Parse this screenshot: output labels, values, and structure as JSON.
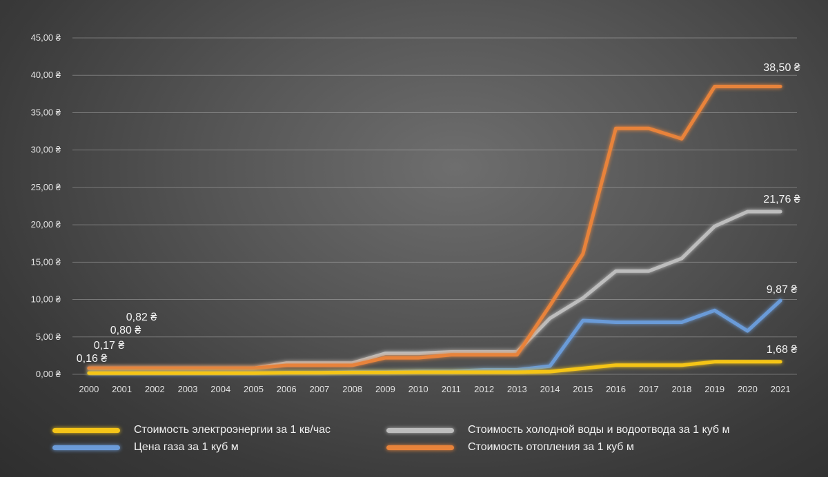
{
  "chart_data": {
    "type": "line",
    "title": "",
    "xlabel": "",
    "ylabel": "",
    "x": [
      "2000",
      "2001",
      "2002",
      "2003",
      "2004",
      "2005",
      "2006",
      "2007",
      "2008",
      "2009",
      "2010",
      "2011",
      "2012",
      "2013",
      "2014",
      "2015",
      "2016",
      "2017",
      "2018",
      "2019",
      "2020",
      "2021"
    ],
    "ylim": [
      0,
      45
    ],
    "y_ticks": [
      "0,00 ₴",
      "5,00 ₴",
      "10,00 ₴",
      "15,00 ₴",
      "20,00 ₴",
      "25,00 ₴",
      "30,00 ₴",
      "35,00 ₴",
      "40,00 ₴",
      "45,00 ₴"
    ],
    "grid": true,
    "legend_position": "bottom",
    "series": [
      {
        "name": "Стоимость электроэнергии за 1 кв/час",
        "color": "#f5c518",
        "values": [
          0.16,
          0.16,
          0.16,
          0.16,
          0.16,
          0.16,
          0.2,
          0.2,
          0.24,
          0.24,
          0.28,
          0.28,
          0.28,
          0.28,
          0.36,
          0.79,
          1.22,
          1.22,
          1.22,
          1.68,
          1.68,
          1.68
        ]
      },
      {
        "name": "Стоимость холодной воды и водоотвода за 1 куб м",
        "color": "#bdbdbd",
        "values": [
          0.8,
          0.8,
          0.8,
          0.8,
          0.8,
          0.8,
          1.5,
          1.5,
          1.5,
          2.8,
          2.8,
          3.0,
          3.0,
          3.0,
          7.5,
          10.2,
          13.8,
          13.8,
          15.5,
          19.8,
          21.76,
          21.76
        ]
      },
      {
        "name": "Цена газа за 1 куб м",
        "color": "#6b9bd8",
        "values": [
          0.17,
          0.17,
          0.17,
          0.17,
          0.17,
          0.17,
          0.2,
          0.2,
          0.3,
          0.3,
          0.4,
          0.4,
          0.6,
          0.6,
          1.1,
          7.19,
          6.96,
          6.96,
          6.96,
          8.55,
          5.8,
          9.87
        ]
      },
      {
        "name": "Стоимость отопления за 1 куб м",
        "color": "#e8833a",
        "values": [
          0.82,
          0.82,
          0.82,
          0.82,
          0.82,
          0.82,
          1.2,
          1.2,
          1.2,
          2.2,
          2.2,
          2.6,
          2.6,
          2.6,
          9.2,
          16.1,
          32.9,
          32.9,
          31.5,
          38.5,
          38.5,
          38.5
        ]
      }
    ],
    "data_labels": [
      {
        "text": "0,82 ₴",
        "color_of": 3
      },
      {
        "text": "0,80 ₴",
        "color_of": 1
      },
      {
        "text": "0,17 ₴",
        "color_of": 2
      },
      {
        "text": "0,16 ₴",
        "color_of": 0
      },
      {
        "text": "38,50 ₴"
      },
      {
        "text": "21,76 ₴"
      },
      {
        "text": "9,87 ₴"
      },
      {
        "text": "1,68 ₴"
      }
    ]
  }
}
